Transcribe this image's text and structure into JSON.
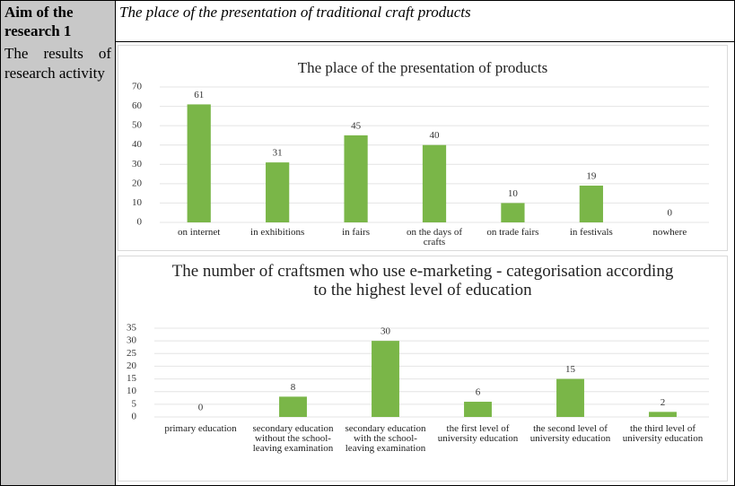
{
  "table": {
    "rows": [
      [
        "Aim of the research 1",
        "The place of the presentation of traditional craft products"
      ],
      [
        "The results of research activity"
      ]
    ]
  },
  "chart_data": [
    {
      "type": "bar",
      "title": "The place of the presentation of products",
      "categories": [
        "on internet",
        "in exhibitions",
        "in fairs",
        "on the days of crafts",
        "on trade fairs",
        "in festivals",
        "nowhere"
      ],
      "values": [
        61,
        31,
        45,
        40,
        10,
        19,
        0
      ],
      "color": "#7ab648",
      "ylim": [
        0,
        70
      ],
      "yticks": [
        0,
        10,
        20,
        30,
        40,
        50,
        60,
        70
      ],
      "grid": true
    },
    {
      "type": "bar",
      "title": "The number of craftsmen who use e-marketing - categorisation according to the highest level of education",
      "categories": [
        "primary education",
        "secondary education without the school-leaving examination",
        "secondary education with the school-leaving examination",
        "the first level of university education",
        "the second level of university education",
        "the third level of university education"
      ],
      "values": [
        0,
        8,
        30,
        6,
        15,
        2
      ],
      "color": "#7ab648",
      "ylim": [
        0,
        35
      ],
      "yticks": [
        0,
        5,
        10,
        15,
        20,
        25,
        30,
        35
      ],
      "grid": true
    }
  ]
}
